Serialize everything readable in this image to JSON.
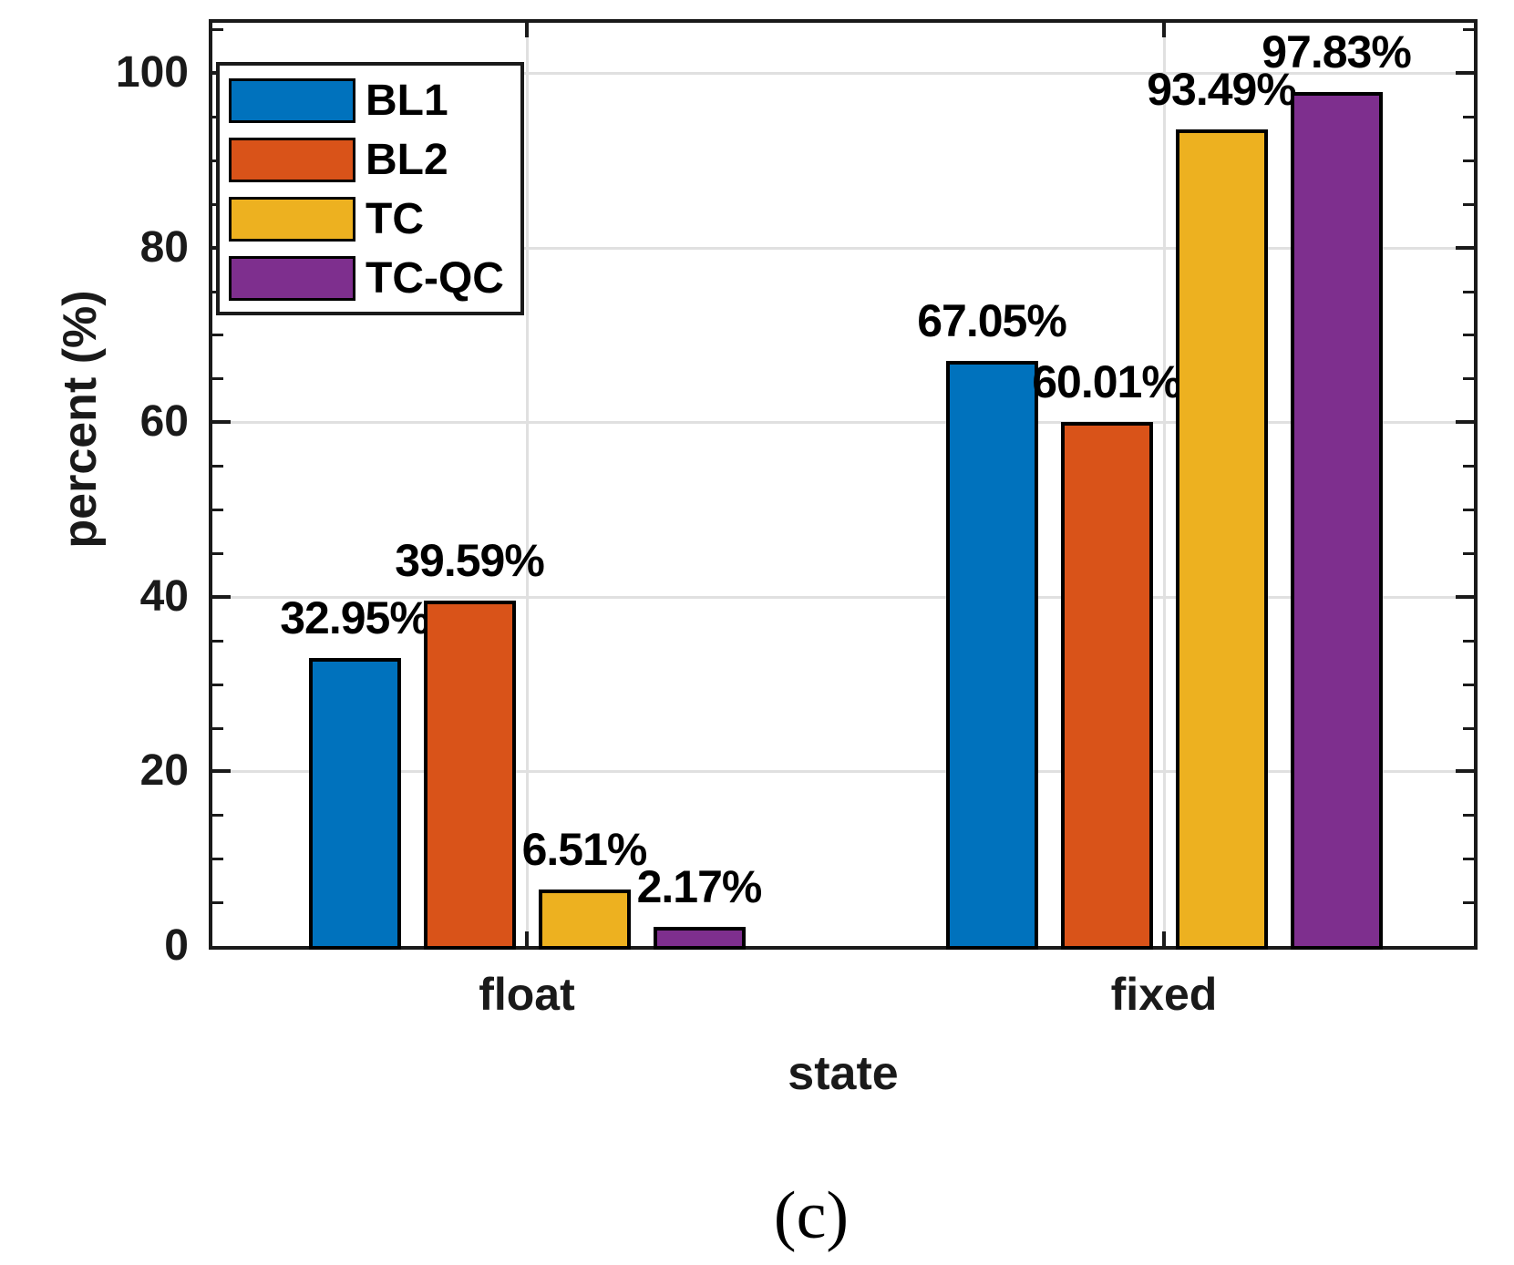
{
  "figure": {
    "caption": "(c)"
  },
  "chart_data": {
    "type": "bar",
    "title": "",
    "xlabel": "state",
    "ylabel": "percent (%)",
    "categories": [
      "float",
      "fixed"
    ],
    "series": [
      {
        "name": "BL1",
        "color": "#0072BD",
        "values": [
          32.95,
          67.05
        ],
        "labels": [
          "32.95%",
          "67.05%"
        ]
      },
      {
        "name": "BL2",
        "color": "#D95319",
        "values": [
          39.59,
          60.01
        ],
        "labels": [
          "39.59%",
          "60.01%"
        ]
      },
      {
        "name": "TC",
        "color": "#EDB120",
        "values": [
          6.51,
          93.49
        ],
        "labels": [
          "6.51%",
          "93.49%"
        ]
      },
      {
        "name": "TC-QC",
        "color": "#7E2F8E",
        "values": [
          2.17,
          97.83
        ],
        "labels": [
          "2.17%",
          "97.83%"
        ]
      }
    ],
    "ylim": [
      0,
      105.7
    ],
    "yticks": [
      0,
      20,
      40,
      60,
      80,
      100
    ],
    "y_minor_tick_step": 5,
    "grid": true,
    "legend_position": "top-left",
    "axis_color": "#1a1a1a",
    "grid_color": "#e0e0e0",
    "bar_edge_color": "#000000",
    "text_color": "#000000"
  }
}
